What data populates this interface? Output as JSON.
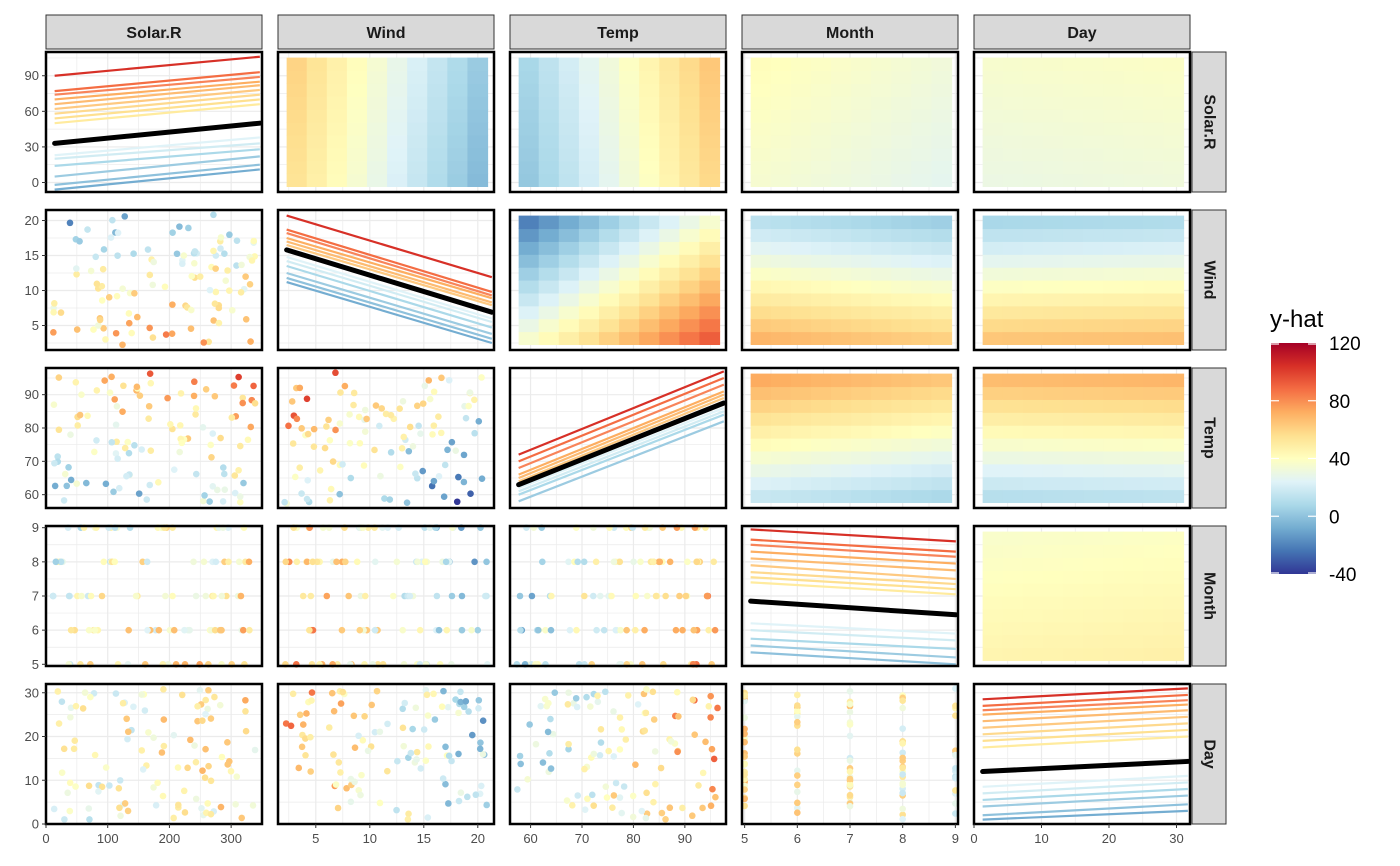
{
  "chart_data": {
    "type": "heatmap",
    "title": "",
    "variables": [
      "Solar.R",
      "Wind",
      "Temp",
      "Month",
      "Day"
    ],
    "axes": {
      "Solar.R": {
        "range": [
          0,
          350
        ],
        "ticks": [
          0,
          100,
          200,
          300
        ],
        "yticks": [
          0,
          30,
          60,
          90
        ],
        "yrange": [
          -8,
          110
        ]
      },
      "Wind": {
        "range": [
          1.5,
          21.5
        ],
        "ticks": [
          5,
          10,
          15,
          20
        ],
        "yticks": [
          5,
          10,
          15,
          20
        ]
      },
      "Temp": {
        "range": [
          56,
          98
        ],
        "ticks": [
          60,
          70,
          80,
          90
        ],
        "yticks": [
          60,
          70,
          80,
          90
        ]
      },
      "Month": {
        "range": [
          4.95,
          9.05
        ],
        "ticks": [
          5,
          6,
          7,
          8,
          9
        ],
        "yticks": [
          5,
          6,
          7,
          8,
          9
        ]
      },
      "Day": {
        "range": [
          0,
          32
        ],
        "ticks": [
          0,
          10,
          20,
          30
        ],
        "yticks": [
          0,
          10,
          20,
          30
        ]
      }
    },
    "legend": {
      "title": "y-hat",
      "range": [
        -40,
        120
      ],
      "ticks": [
        "120",
        "80",
        "40",
        "0",
        "-40"
      ],
      "tick_values": [
        120,
        80,
        40,
        0,
        -40
      ],
      "placement": "right",
      "colors": [
        "#313695",
        "#4575b4",
        "#74add1",
        "#abd9e9",
        "#e0f3f8",
        "#ffffbf",
        "#fee090",
        "#fdae61",
        "#f46d43",
        "#d73027",
        "#a50026"
      ]
    },
    "diagonal_lines": {
      "Solar.R": {
        "avg": [
          33,
          50
        ],
        "colors_hi": [
          [
            90,
            106
          ],
          [
            77,
            93
          ],
          [
            74,
            89
          ],
          [
            70,
            85
          ],
          [
            66,
            82
          ],
          [
            62,
            78
          ],
          [
            58,
            74
          ],
          [
            54,
            70
          ],
          [
            50,
            66
          ]
        ],
        "colors_lo": [
          [
            23,
            38
          ],
          [
            20,
            33
          ],
          [
            14,
            28
          ],
          [
            5,
            22
          ],
          [
            -2,
            15
          ],
          [
            -6,
            11
          ]
        ]
      },
      "Wind": {
        "avg": [
          15.8,
          6.9
        ],
        "colors_hi": [
          [
            20.7,
            11.9
          ],
          [
            18.7,
            9.8
          ],
          [
            18.2,
            9.3
          ],
          [
            17.5,
            8.9
          ],
          [
            17,
            8.3
          ],
          [
            16.5,
            7.9
          ]
        ],
        "colors_lo": [
          [
            14.8,
            6
          ],
          [
            14.2,
            5.5
          ],
          [
            13.5,
            4.7
          ],
          [
            12.5,
            3.8
          ],
          [
            11.8,
            3.1
          ],
          [
            11.2,
            2.5
          ]
        ]
      },
      "Temp": {
        "avg": [
          63,
          87.5
        ],
        "colors_hi": [
          [
            72,
            97
          ],
          [
            70,
            95
          ],
          [
            68,
            93
          ],
          [
            66,
            91
          ],
          [
            65,
            90
          ],
          [
            64,
            89
          ]
        ],
        "colors_lo": [
          [
            62,
            86
          ],
          [
            61,
            85
          ],
          [
            60,
            84
          ],
          [
            58,
            82
          ]
        ]
      },
      "Month": {
        "avg": [
          6.85,
          6.45
        ],
        "colors_hi": [
          [
            8.95,
            8.6
          ],
          [
            8.65,
            8.3
          ],
          [
            8.5,
            8.15
          ],
          [
            8.3,
            7.95
          ],
          [
            8.1,
            7.75
          ],
          [
            7.9,
            7.5
          ],
          [
            7.7,
            7.35
          ],
          [
            7.55,
            7.2
          ],
          [
            7.4,
            7.05
          ]
        ],
        "colors_lo": [
          [
            6.2,
            5.9
          ],
          [
            6,
            5.7
          ],
          [
            5.75,
            5.45
          ],
          [
            5.55,
            5.2
          ],
          [
            5.35,
            5
          ]
        ]
      },
      "Day": {
        "avg": [
          12,
          14.3
        ],
        "colors_hi": [
          [
            28.5,
            31
          ],
          [
            27,
            29.5
          ],
          [
            26,
            28.3
          ],
          [
            25,
            27.3
          ],
          [
            23.5,
            26
          ],
          [
            22,
            24.5
          ],
          [
            20.5,
            23
          ],
          [
            19,
            21.5
          ],
          [
            17.5,
            20
          ]
        ],
        "colors_lo": [
          [
            8.5,
            11
          ],
          [
            7,
            9.5
          ],
          [
            5.5,
            8
          ],
          [
            4,
            6.5
          ],
          [
            2,
            4.5
          ],
          [
            1,
            3
          ]
        ]
      }
    }
  }
}
